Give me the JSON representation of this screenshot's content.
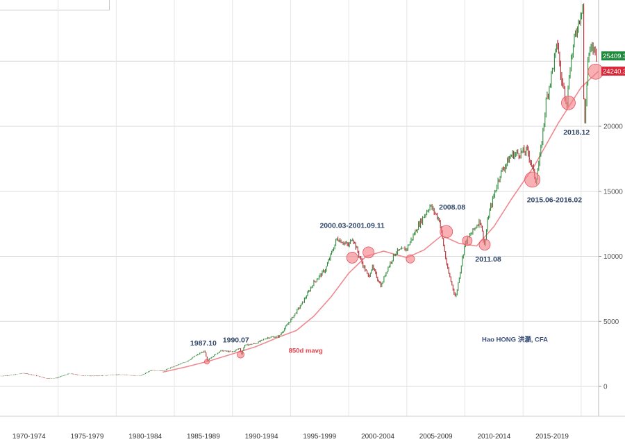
{
  "chart_data": {
    "type": "line",
    "ylim": [
      -1000,
      29000
    ],
    "y_ticks": [
      0,
      5000,
      10000,
      15000,
      20000
    ],
    "y_tick_labels": [
      "0",
      "5000",
      "10000",
      "15000",
      "20000"
    ],
    "x_range": [
      1970,
      2021.5
    ],
    "x_tick_labels": [
      "1970-1974",
      "1975-1979",
      "1980-1984",
      "1985-1989",
      "1990-1994",
      "1995-1999",
      "2000-2004",
      "2005-2009",
      "2010-2014",
      "2015-2019"
    ],
    "x_tick_positions": [
      1972.5,
      1977.5,
      1982.5,
      1987.5,
      1992.5,
      1997.5,
      2002.5,
      2007.5,
      2012.5,
      2017.5
    ],
    "series": [
      {
        "role": "price",
        "color_up": "#2e8b3a",
        "color_down": "#b0282e",
        "x": [
          1970,
          1971,
          1972,
          1973,
          1974,
          1974.8,
          1976,
          1977,
          1978,
          1979,
          1980,
          1981,
          1982,
          1982.6,
          1983,
          1984,
          1985,
          1986,
          1987,
          1987.6,
          1987.83,
          1988,
          1989,
          1990,
          1990.6,
          1990.8,
          1991,
          1992,
          1993,
          1994,
          1995,
          1996,
          1997,
          1998,
          1999,
          2000,
          2000.3,
          2001,
          2001.7,
          2002,
          2002.8,
          2003.2,
          2004,
          2005,
          2006,
          2007,
          2007.8,
          2008.5,
          2009.2,
          2010,
          2011.3,
          2011.7,
          2012,
          2013,
          2014,
          2015.4,
          2016.1,
          2016.5,
          2017,
          2018,
          2018.2,
          2018.8,
          2019,
          2019.5,
          2020.15,
          2020.25,
          2020.6,
          2021,
          2021.5
        ],
        "y": [
          800,
          880,
          1020,
          850,
          620,
          640,
          1000,
          830,
          810,
          840,
          900,
          880,
          800,
          1050,
          1250,
          1200,
          1550,
          1900,
          2450,
          2720,
          1900,
          2150,
          2750,
          2650,
          2950,
          2450,
          3150,
          3300,
          3750,
          3850,
          5100,
          6400,
          8000,
          9000,
          11400,
          10800,
          11500,
          9800,
          8400,
          9200,
          7700,
          8800,
          10300,
          10600,
          12400,
          13900,
          12800,
          9000,
          6800,
          11000,
          12800,
          10800,
          13100,
          16300,
          17800,
          18100,
          15800,
          17900,
          22000,
          26500,
          24000,
          21800,
          24500,
          27000,
          29500,
          19000,
          25500,
          26000,
          25409
        ]
      },
      {
        "role": "moving-average",
        "color": "#ef8a90",
        "x": [
          1984,
          1986,
          1988,
          1990,
          1992,
          1994,
          1995.5,
          1997,
          1998.5,
          2000,
          2001.5,
          2003,
          2005,
          2006.5,
          2008,
          2009.5,
          2011,
          2012.5,
          2014,
          2016,
          2018,
          2020,
          2021.5
        ],
        "y": [
          1100,
          1500,
          1950,
          2500,
          3050,
          3800,
          4300,
          5400,
          6900,
          8700,
          10000,
          10400,
          9900,
          10500,
          11600,
          11000,
          10800,
          12300,
          14400,
          17000,
          20200,
          23000,
          24240
        ]
      }
    ],
    "circles": [
      {
        "x": 1987.8,
        "y": 1900,
        "r": 3.5
      },
      {
        "x": 1990.7,
        "y": 2450,
        "r": 5
      },
      {
        "x": 2000.3,
        "y": 9900,
        "r": 8
      },
      {
        "x": 2001.7,
        "y": 10300,
        "r": 8
      },
      {
        "x": 2005.3,
        "y": 9800,
        "r": 6
      },
      {
        "x": 2008.4,
        "y": 11900,
        "r": 9
      },
      {
        "x": 2010.2,
        "y": 11200,
        "r": 7
      },
      {
        "x": 2011.7,
        "y": 10900,
        "r": 8
      },
      {
        "x": 2015.8,
        "y": 15900,
        "r": 11
      },
      {
        "x": 2018.9,
        "y": 21800,
        "r": 10
      },
      {
        "x": 2021.25,
        "y": 24200,
        "r": 11
      }
    ],
    "annotations": [
      {
        "id": "a1987",
        "text": "1987.10",
        "x": 1987.5,
        "y": 3150,
        "color": "#2f4467"
      },
      {
        "id": "a1990",
        "text": "1990.07",
        "x": 1990.3,
        "y": 3400,
        "color": "#2f4467"
      },
      {
        "id": "a2000",
        "text": "2000.03-2001.09.11",
        "x": 2000.3,
        "y": 12200,
        "color": "#2f4467"
      },
      {
        "id": "a2008",
        "text": "2008.08",
        "x": 2008.9,
        "y": 13600,
        "color": "#2f4467"
      },
      {
        "id": "a2011",
        "text": "2011.08",
        "x": 2012.0,
        "y": 9600,
        "color": "#2f4467"
      },
      {
        "id": "a2015",
        "text": "2015.06-2016.02",
        "x": 2017.7,
        "y": 14150,
        "color": "#2f4467"
      },
      {
        "id": "a2018",
        "text": "2018.12",
        "x": 2019.6,
        "y": 19350,
        "color": "#2f4467"
      }
    ],
    "mavg_label": {
      "text": "850d mavg",
      "x": 1996.3,
      "y": 2600
    },
    "credit": {
      "text": "Hao HONG 洪灝, CFA",
      "x": 2014.3,
      "y": 3450
    },
    "price_tags": [
      {
        "text": "25409.3",
        "y": 25409,
        "color": "#1f8a3b"
      },
      {
        "text": "24240.3",
        "y": 24240,
        "color": "#d8283a"
      }
    ],
    "colors": {
      "grid": "#d9d9d9",
      "circle_fill": "#f47b83",
      "circle_stroke": "#e3505a"
    },
    "grid": true
  }
}
